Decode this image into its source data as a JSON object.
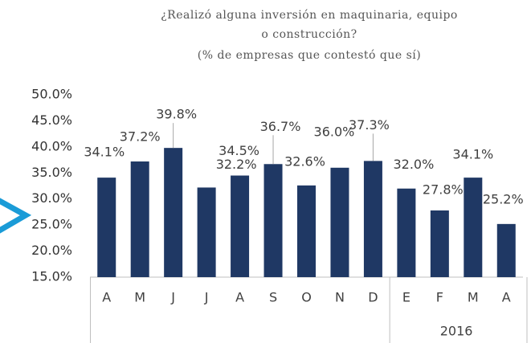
{
  "chart_data": {
    "type": "bar",
    "title": [
      "¿Realizó alguna inversión en maquinaria, equipo",
      "o construcción?"
    ],
    "subtitle": "(% de empresas que contestó que sí)",
    "categories": [
      "A",
      "M",
      "J",
      "J",
      "A",
      "S",
      "O",
      "N",
      "D",
      "E",
      "F",
      "M",
      "A"
    ],
    "values": [
      34.1,
      37.2,
      39.8,
      32.2,
      34.5,
      36.7,
      32.6,
      36.0,
      37.3,
      32.0,
      27.8,
      34.1,
      25.2
    ],
    "value_labels": [
      "34.1%",
      "37.2%",
      "39.8%",
      "32.2%",
      "34.5%",
      "36.7%",
      "32.6%",
      "36.0%",
      "37.3%",
      "32.0%",
      "27.8%",
      "34.1%",
      "25.2%"
    ],
    "group_labels": [
      {
        "label": "2016",
        "start": 9,
        "end": 12
      }
    ],
    "color": "#1f3864",
    "ylim": [
      15,
      50
    ],
    "yticks": [
      {
        "value": 15,
        "label": "15.0%"
      },
      {
        "value": 20,
        "label": "20.0%"
      },
      {
        "value": 25,
        "label": "25.0%"
      },
      {
        "value": 30,
        "label": "30.0%"
      },
      {
        "value": 35,
        "label": "35.0%"
      },
      {
        "value": 40,
        "label": "40.0%"
      },
      {
        "value": 45,
        "label": "45.0%"
      },
      {
        "value": 50,
        "label": "50.0%"
      }
    ],
    "grid": false
  }
}
